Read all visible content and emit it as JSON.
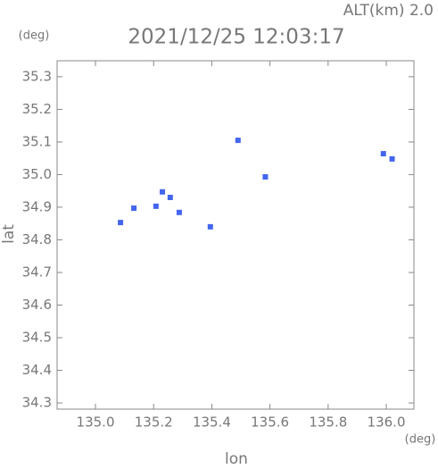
{
  "chart_data": {
    "type": "scatter",
    "title": "2021/12/25 12:03:17",
    "subtitle": "ALT(km)  2.0",
    "x_label": "lon",
    "y_label": "lat",
    "x_unit": "(deg)",
    "y_unit": "(deg)",
    "x": [
      135.49,
      135.584,
      135.99,
      136.02,
      135.086,
      135.23,
      135.257,
      135.208,
      135.288,
      135.395,
      135.132
    ],
    "values": [
      35.105,
      34.993,
      35.064,
      35.048,
      34.853,
      34.947,
      34.93,
      34.903,
      34.884,
      34.84,
      34.897
    ],
    "color": "#4466ee",
    "xlim": [
      134.868,
      136.095
    ],
    "ylim": [
      34.281,
      35.349
    ],
    "xticks": [
      {
        "value": 135,
        "label": "135.0"
      },
      135.2,
      135.4,
      135.6,
      135.8,
      {
        "value": 136,
        "label": "136.0"
      }
    ],
    "yticks": [
      34.3,
      34.4,
      34.5,
      34.6,
      34.7,
      34.8,
      34.9,
      {
        "value": 35,
        "label": "35.0"
      },
      35.1,
      35.2,
      35.3
    ]
  }
}
